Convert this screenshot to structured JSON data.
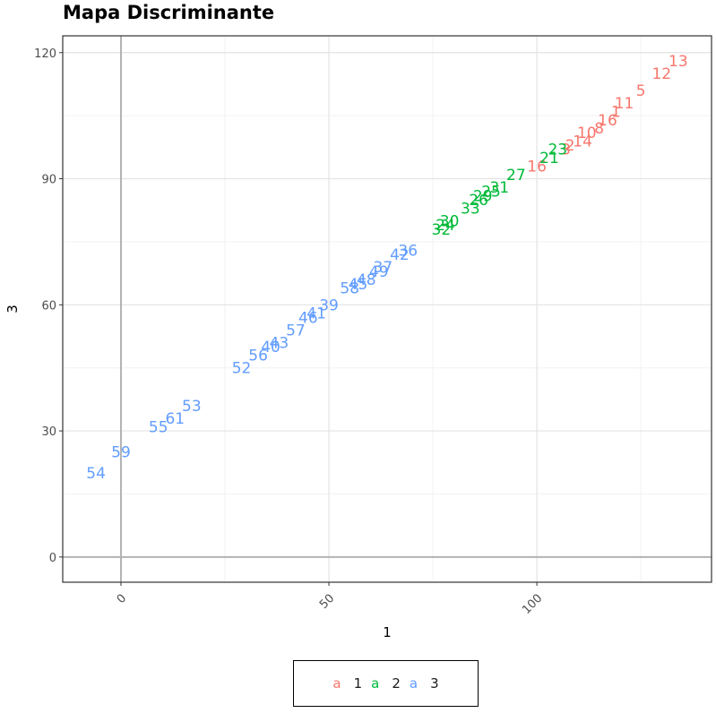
{
  "chart_data": {
    "type": "scatter",
    "title": "Mapa Discriminante",
    "xlabel": "1",
    "ylabel": "3",
    "xlim": [
      -14,
      142
    ],
    "ylim": [
      -6,
      124
    ],
    "xticks": [
      0,
      50,
      100
    ],
    "yticks": [
      0,
      30,
      60,
      90,
      120
    ],
    "xtick_labels": [
      "0",
      "50",
      "100"
    ],
    "ytick_labels": [
      "0",
      "30",
      "60",
      "90",
      "120"
    ],
    "grid": true,
    "reference_lines": {
      "x": 0,
      "y": 0
    },
    "legend_position": "bottom",
    "legend_key_glyph": "a",
    "series": [
      {
        "name": "1",
        "color": "#F8766D",
        "points": [
          {
            "label": "13",
            "x": 134,
            "y": 118
          },
          {
            "label": "12",
            "x": 130,
            "y": 115
          },
          {
            "label": "5",
            "x": 125,
            "y": 111
          },
          {
            "label": "11",
            "x": 121,
            "y": 108
          },
          {
            "label": "1",
            "x": 119,
            "y": 106
          },
          {
            "label": "16",
            "x": 117,
            "y": 104
          },
          {
            "label": "8",
            "x": 115,
            "y": 102
          },
          {
            "label": "10",
            "x": 112,
            "y": 101
          },
          {
            "label": "14",
            "x": 111,
            "y": 99
          },
          {
            "label": "2",
            "x": 108,
            "y": 98
          },
          {
            "label": "3",
            "x": 107,
            "y": 97
          },
          {
            "label": "16",
            "x": 100,
            "y": 93
          }
        ]
      },
      {
        "name": "2",
        "color": "#00BA38",
        "points": [
          {
            "label": "23",
            "x": 105,
            "y": 97
          },
          {
            "label": "21",
            "x": 103,
            "y": 95
          },
          {
            "label": "27",
            "x": 95,
            "y": 91
          },
          {
            "label": "31",
            "x": 91,
            "y": 88
          },
          {
            "label": "25",
            "x": 89,
            "y": 87
          },
          {
            "label": "29",
            "x": 87,
            "y": 86
          },
          {
            "label": "26",
            "x": 86,
            "y": 85
          },
          {
            "label": "33",
            "x": 84,
            "y": 83
          },
          {
            "label": "30",
            "x": 79,
            "y": 80
          },
          {
            "label": "24",
            "x": 78,
            "y": 79
          },
          {
            "label": "32",
            "x": 77,
            "y": 78
          }
        ]
      },
      {
        "name": "3",
        "color": "#619CFF",
        "points": [
          {
            "label": "36",
            "x": 69,
            "y": 73
          },
          {
            "label": "42",
            "x": 67,
            "y": 72
          },
          {
            "label": "37",
            "x": 63,
            "y": 69
          },
          {
            "label": "49",
            "x": 62,
            "y": 68
          },
          {
            "label": "48",
            "x": 59,
            "y": 66
          },
          {
            "label": "45",
            "x": 57,
            "y": 65
          },
          {
            "label": "58",
            "x": 55,
            "y": 64
          },
          {
            "label": "39",
            "x": 50,
            "y": 60
          },
          {
            "label": "41",
            "x": 47,
            "y": 58
          },
          {
            "label": "46",
            "x": 45,
            "y": 57
          },
          {
            "label": "57",
            "x": 42,
            "y": 54
          },
          {
            "label": "43",
            "x": 38,
            "y": 51
          },
          {
            "label": "40",
            "x": 36,
            "y": 50
          },
          {
            "label": "56",
            "x": 33,
            "y": 48
          },
          {
            "label": "52",
            "x": 29,
            "y": 45
          },
          {
            "label": "53",
            "x": 17,
            "y": 36
          },
          {
            "label": "61",
            "x": 13,
            "y": 33
          },
          {
            "label": "55",
            "x": 9,
            "y": 31
          },
          {
            "label": "59",
            "x": 0,
            "y": 25
          },
          {
            "label": "54",
            "x": -6,
            "y": 20
          }
        ]
      }
    ]
  }
}
